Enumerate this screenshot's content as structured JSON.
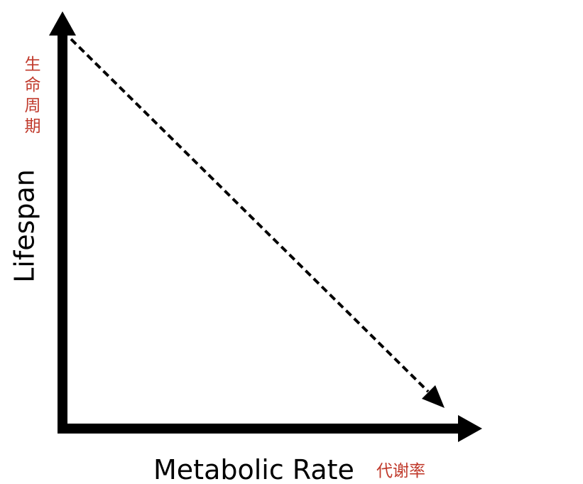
{
  "y_axis": {
    "label": "Lifespan",
    "label_zh": "生命周期"
  },
  "x_axis": {
    "label": "Metabolic Rate",
    "label_zh": "代谢率"
  }
}
